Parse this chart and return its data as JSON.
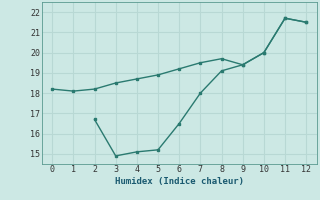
{
  "xlabel": "Humidex (Indice chaleur)",
  "bg_color": "#cce8e4",
  "grid_color": "#b8d8d4",
  "line_color": "#2a7a70",
  "line1_x": [
    0,
    1,
    2,
    3,
    4,
    5,
    6,
    7,
    8,
    9,
    10,
    11,
    12
  ],
  "line1_y": [
    18.2,
    18.1,
    18.2,
    18.5,
    18.7,
    18.9,
    19.2,
    19.5,
    19.7,
    19.4,
    20.0,
    21.7,
    21.5
  ],
  "line2_x": [
    2,
    3,
    4,
    5,
    6,
    7,
    8,
    9,
    10,
    11,
    12
  ],
  "line2_y": [
    16.7,
    14.9,
    15.1,
    15.2,
    16.5,
    18.0,
    19.1,
    19.4,
    20.0,
    21.7,
    21.5
  ],
  "xlim": [
    -0.5,
    12.5
  ],
  "ylim": [
    14.5,
    22.5
  ],
  "yticks": [
    15,
    16,
    17,
    18,
    19,
    20,
    21,
    22
  ],
  "xticks": [
    0,
    1,
    2,
    3,
    4,
    5,
    6,
    7,
    8,
    9,
    10,
    11,
    12
  ]
}
